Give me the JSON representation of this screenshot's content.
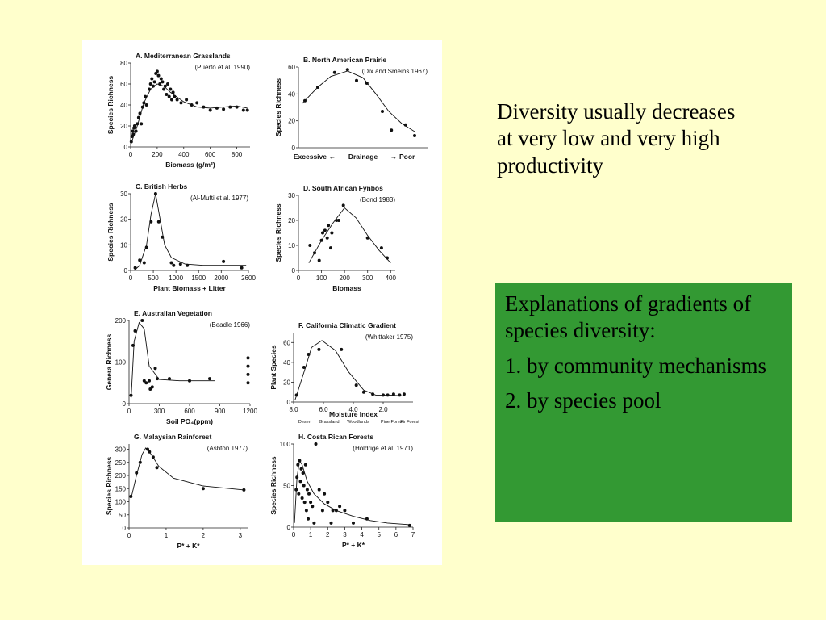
{
  "right_text": "Diversity usually decreases at very low and very high productivity",
  "green_box": {
    "heading": "Explanations of gradients of species diversity:",
    "items": [
      "1. by community mechanisms",
      "2. by species pool"
    ],
    "color": "#339933"
  },
  "colors": {
    "background": "#ffffcc",
    "figure_background": "#ffffff"
  },
  "chart_data": [
    {
      "type": "scatter",
      "title": "A. Mediterranean Grasslands",
      "citation": "(Puerto et al. 1990)",
      "xlabel": "Biomass (g/m²)",
      "ylabel": "Species Richness",
      "xlim": [
        0,
        900
      ],
      "ylim": [
        0,
        80
      ],
      "xticks": [
        0,
        200,
        400,
        600,
        800
      ],
      "yticks": [
        0,
        20,
        40,
        60,
        80
      ],
      "points": [
        [
          5,
          5
        ],
        [
          10,
          10
        ],
        [
          15,
          15
        ],
        [
          20,
          12
        ],
        [
          25,
          18
        ],
        [
          30,
          20
        ],
        [
          40,
          15
        ],
        [
          50,
          22
        ],
        [
          60,
          28
        ],
        [
          70,
          32
        ],
        [
          80,
          22
        ],
        [
          90,
          38
        ],
        [
          100,
          42
        ],
        [
          110,
          48
        ],
        [
          120,
          40
        ],
        [
          140,
          55
        ],
        [
          150,
          60
        ],
        [
          160,
          65
        ],
        [
          170,
          58
        ],
        [
          180,
          62
        ],
        [
          190,
          70
        ],
        [
          200,
          72
        ],
        [
          210,
          68
        ],
        [
          220,
          60
        ],
        [
          230,
          65
        ],
        [
          240,
          62
        ],
        [
          250,
          55
        ],
        [
          260,
          58
        ],
        [
          270,
          50
        ],
        [
          280,
          60
        ],
        [
          290,
          48
        ],
        [
          300,
          55
        ],
        [
          310,
          45
        ],
        [
          320,
          52
        ],
        [
          330,
          48
        ],
        [
          350,
          45
        ],
        [
          380,
          42
        ],
        [
          420,
          45
        ],
        [
          460,
          40
        ],
        [
          500,
          42
        ],
        [
          550,
          38
        ],
        [
          600,
          35
        ],
        [
          650,
          37
        ],
        [
          700,
          36
        ],
        [
          750,
          38
        ],
        [
          800,
          38
        ],
        [
          850,
          35
        ],
        [
          880,
          35
        ]
      ],
      "curve": [
        [
          0,
          2
        ],
        [
          50,
          20
        ],
        [
          100,
          42
        ],
        [
          150,
          55
        ],
        [
          200,
          60
        ],
        [
          250,
          58
        ],
        [
          300,
          52
        ],
        [
          400,
          43
        ],
        [
          500,
          38
        ],
        [
          600,
          37
        ],
        [
          700,
          38
        ],
        [
          800,
          39
        ],
        [
          880,
          37
        ]
      ]
    },
    {
      "type": "scatter",
      "title": "B. North American Prairie",
      "citation": "(Dix and Smeins 1967)",
      "xlabel_parts": [
        "Excessive",
        "Drainage",
        "Poor"
      ],
      "ylabel": "Species Richness",
      "xlim": [
        0,
        10
      ],
      "ylim": [
        0,
        60
      ],
      "yticks": [
        0,
        20,
        40,
        60
      ],
      "points": [
        [
          0.5,
          35
        ],
        [
          1.5,
          45
        ],
        [
          2.8,
          56
        ],
        [
          3.8,
          58
        ],
        [
          4.5,
          50
        ],
        [
          5.3,
          48
        ],
        [
          6.5,
          27
        ],
        [
          7.2,
          13
        ],
        [
          8.3,
          17
        ],
        [
          9.0,
          9
        ]
      ],
      "curve": [
        [
          0.3,
          33
        ],
        [
          1.5,
          45
        ],
        [
          2.5,
          53
        ],
        [
          3.8,
          57
        ],
        [
          5,
          52
        ],
        [
          6,
          40
        ],
        [
          7,
          27
        ],
        [
          8,
          18
        ],
        [
          9,
          12
        ]
      ]
    },
    {
      "type": "scatter",
      "title": "C. British Herbs",
      "citation": "(Al-Mufti et al. 1977)",
      "xlabel": "Plant Biomass + Litter",
      "ylabel": "Species Richness",
      "xlim": [
        0,
        2600
      ],
      "ylim": [
        0,
        30
      ],
      "xticks": [
        0,
        500,
        1000,
        1500,
        2000,
        2600
      ],
      "xtick_labels": [
        "0",
        "500",
        "1000",
        "1500",
        "2000",
        "2600"
      ],
      "yticks": [
        0,
        10,
        20,
        30
      ],
      "points": [
        [
          100,
          1
        ],
        [
          200,
          4
        ],
        [
          300,
          3
        ],
        [
          350,
          9
        ],
        [
          450,
          19
        ],
        [
          550,
          30
        ],
        [
          620,
          19
        ],
        [
          700,
          13
        ],
        [
          900,
          3
        ],
        [
          950,
          2
        ],
        [
          1100,
          2.5
        ],
        [
          1250,
          2
        ],
        [
          2050,
          3.5
        ],
        [
          2450,
          1
        ]
      ],
      "curve": [
        [
          80,
          0
        ],
        [
          200,
          2
        ],
        [
          350,
          10
        ],
        [
          450,
          22
        ],
        [
          550,
          30
        ],
        [
          650,
          20
        ],
        [
          750,
          10
        ],
        [
          900,
          5
        ],
        [
          1200,
          2.5
        ],
        [
          1600,
          2
        ],
        [
          2000,
          2
        ],
        [
          2550,
          2
        ]
      ]
    },
    {
      "type": "scatter",
      "title": "D. South African Fynbos",
      "citation": "(Bond 1983)",
      "xlabel": "Biomass",
      "ylabel": "Species Richness",
      "xlim": [
        0,
        420
      ],
      "ylim": [
        0,
        30
      ],
      "xticks": [
        0,
        100,
        200,
        300,
        400
      ],
      "yticks": [
        0,
        10,
        20,
        30
      ],
      "points": [
        [
          50,
          10
        ],
        [
          70,
          7
        ],
        [
          90,
          4
        ],
        [
          100,
          12
        ],
        [
          105,
          15
        ],
        [
          115,
          16
        ],
        [
          125,
          13
        ],
        [
          130,
          18
        ],
        [
          140,
          9
        ],
        [
          145,
          15
        ],
        [
          165,
          20
        ],
        [
          175,
          20
        ],
        [
          195,
          26
        ],
        [
          300,
          13
        ],
        [
          360,
          9
        ],
        [
          385,
          5
        ]
      ],
      "curve": [
        [
          45,
          3
        ],
        [
          100,
          12
        ],
        [
          150,
          19
        ],
        [
          200,
          25
        ],
        [
          250,
          21
        ],
        [
          300,
          14
        ],
        [
          350,
          8
        ],
        [
          400,
          3
        ]
      ]
    },
    {
      "type": "scatter",
      "title": "E. Australian Vegetation",
      "citation": "(Beadle 1966)",
      "xlabel": "Soil PO₄(ppm)",
      "ylabel": "Genera Richness",
      "xlim": [
        0,
        1200
      ],
      "ylim": [
        0,
        200
      ],
      "xticks": [
        0,
        300,
        600,
        900,
        1200
      ],
      "yticks": [
        0,
        100,
        200
      ],
      "points": [
        [
          20,
          20
        ],
        [
          40,
          140
        ],
        [
          60,
          175
        ],
        [
          130,
          200
        ],
        [
          150,
          55
        ],
        [
          170,
          50
        ],
        [
          200,
          55
        ],
        [
          210,
          35
        ],
        [
          230,
          40
        ],
        [
          260,
          85
        ],
        [
          280,
          60
        ],
        [
          400,
          60
        ],
        [
          600,
          55
        ],
        [
          800,
          60
        ],
        [
          1180,
          110
        ],
        [
          1180,
          90
        ],
        [
          1180,
          70
        ],
        [
          1180,
          50
        ]
      ],
      "curve": [
        [
          20,
          10
        ],
        [
          50,
          150
        ],
        [
          100,
          195
        ],
        [
          150,
          180
        ],
        [
          200,
          90
        ],
        [
          300,
          58
        ],
        [
          500,
          55
        ],
        [
          850,
          55
        ]
      ]
    },
    {
      "type": "scatter",
      "title": "F. California Climatic Gradient",
      "citation": "(Whittaker 1975)",
      "xlabel": "Moisture Index",
      "ylabel": "Plant Species",
      "xlim": [
        8,
        0
      ],
      "ylim": [
        0,
        70
      ],
      "xticks": [
        8,
        6,
        4,
        2
      ],
      "xtick_labels": [
        "8.0",
        "6.0",
        "4.0",
        "2.0"
      ],
      "yticks": [
        0,
        20,
        40,
        60
      ],
      "xtick_extra": [
        "Desert",
        "Grassland",
        "Woodlands",
        "Pine Forest",
        "Fir Forest"
      ],
      "points": [
        [
          7.8,
          7
        ],
        [
          7.3,
          35
        ],
        [
          7.0,
          48
        ],
        [
          6.3,
          53
        ],
        [
          4.8,
          53
        ],
        [
          3.8,
          17
        ],
        [
          3.3,
          10
        ],
        [
          2.7,
          8
        ],
        [
          2.0,
          7
        ],
        [
          1.7,
          7
        ],
        [
          1.3,
          8
        ],
        [
          0.9,
          7
        ],
        [
          0.6,
          8
        ]
      ],
      "curve": [
        [
          7.9,
          2
        ],
        [
          7.2,
          35
        ],
        [
          6.8,
          55
        ],
        [
          6.1,
          62
        ],
        [
          5.2,
          52
        ],
        [
          4.3,
          30
        ],
        [
          3.3,
          12
        ],
        [
          2.5,
          7
        ],
        [
          1.5,
          7
        ],
        [
          0.5,
          6
        ]
      ]
    },
    {
      "type": "scatter",
      "title": "G. Malaysian Rainforest",
      "citation": "(Ashton 1977)",
      "xlabel": "P* + K*",
      "ylabel": "Species Richness",
      "xlim": [
        0,
        3.2
      ],
      "ylim": [
        0,
        320
      ],
      "xticks": [
        0,
        1,
        2,
        3
      ],
      "yticks": [
        0,
        50,
        100,
        150,
        200,
        250,
        300
      ],
      "points": [
        [
          0.05,
          120
        ],
        [
          0.2,
          210
        ],
        [
          0.3,
          250
        ],
        [
          0.5,
          300
        ],
        [
          0.55,
          290
        ],
        [
          0.65,
          270
        ],
        [
          0.75,
          230
        ],
        [
          2.0,
          150
        ],
        [
          3.1,
          145
        ]
      ],
      "curve": [
        [
          0.05,
          110
        ],
        [
          0.2,
          200
        ],
        [
          0.35,
          280
        ],
        [
          0.45,
          305
        ],
        [
          0.6,
          280
        ],
        [
          0.8,
          235
        ],
        [
          1.2,
          190
        ],
        [
          2,
          160
        ],
        [
          3.1,
          145
        ]
      ]
    },
    {
      "type": "scatter",
      "title": "H. Costa Rican Forests",
      "citation": "(Holdrige et al. 1971)",
      "xlabel": "P* + K*",
      "ylabel": "Species Richness",
      "xlim": [
        0,
        7
      ],
      "ylim": [
        0,
        100
      ],
      "xticks": [
        0,
        1,
        2,
        3,
        4,
        5,
        6,
        7
      ],
      "yticks": [
        0,
        50,
        100
      ],
      "points": [
        [
          0.15,
          45
        ],
        [
          0.2,
          60
        ],
        [
          0.25,
          75
        ],
        [
          0.3,
          40
        ],
        [
          0.35,
          80
        ],
        [
          0.4,
          55
        ],
        [
          0.45,
          70
        ],
        [
          0.5,
          35
        ],
        [
          0.55,
          65
        ],
        [
          0.6,
          50
        ],
        [
          0.65,
          30
        ],
        [
          0.7,
          75
        ],
        [
          0.75,
          20
        ],
        [
          0.8,
          45
        ],
        [
          0.85,
          10
        ],
        [
          0.9,
          40
        ],
        [
          1.0,
          30
        ],
        [
          1.1,
          25
        ],
        [
          1.2,
          5
        ],
        [
          1.3,
          100
        ],
        [
          1.5,
          45
        ],
        [
          1.7,
          20
        ],
        [
          1.8,
          40
        ],
        [
          2.0,
          30
        ],
        [
          2.2,
          5
        ],
        [
          2.3,
          20
        ],
        [
          2.5,
          20
        ],
        [
          2.7,
          25
        ],
        [
          3.0,
          20
        ],
        [
          3.5,
          5
        ],
        [
          4.3,
          10
        ],
        [
          6.8,
          2
        ]
      ],
      "curve": [
        [
          0.05,
          5
        ],
        [
          0.2,
          60
        ],
        [
          0.35,
          80
        ],
        [
          0.5,
          75
        ],
        [
          0.8,
          55
        ],
        [
          1.2,
          40
        ],
        [
          1.8,
          28
        ],
        [
          2.5,
          20
        ],
        [
          3.5,
          13
        ],
        [
          4.5,
          8
        ],
        [
          5.5,
          5
        ],
        [
          6.8,
          3
        ]
      ]
    }
  ]
}
